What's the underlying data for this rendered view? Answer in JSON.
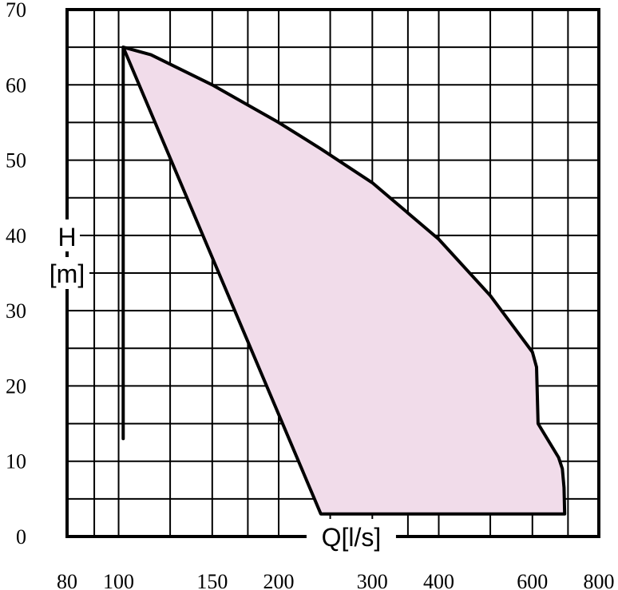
{
  "chart_data": {
    "type": "area",
    "title": "",
    "xlabel": "Q[l/s]",
    "ylabel_line1": "H",
    "ylabel_line2": "[m]",
    "x_scale": "log",
    "xlim": [
      80,
      800
    ],
    "ylim": [
      0,
      70
    ],
    "x_ticks": [
      80,
      100,
      150,
      200,
      300,
      400,
      600,
      800
    ],
    "x_tick_labels": [
      "80",
      "100",
      "150",
      "200",
      "300",
      "400",
      "600",
      "800"
    ],
    "x_minor_grid": [
      90,
      125,
      175,
      250,
      350,
      500,
      700
    ],
    "y_ticks": [
      0,
      10,
      20,
      30,
      40,
      50,
      60,
      70
    ],
    "y_tick_labels": [
      "0",
      "10",
      "20",
      "30",
      "40",
      "50",
      "60",
      "70"
    ],
    "y_minor_grid": [
      5,
      15,
      25,
      35,
      45,
      55,
      65
    ],
    "grid": true,
    "fill_color": "#f1dcea",
    "line_color": "#000000",
    "series": [
      {
        "x": [
          102,
          102,
          240,
          690,
          688,
          683,
          672,
          615,
          611,
          600,
          500,
          400,
          300,
          240,
          200,
          150,
          115,
          102
        ],
        "y": [
          13,
          65,
          3,
          3,
          6.5,
          9,
          10.5,
          15,
          22.5,
          24.5,
          32,
          39.5,
          47,
          51.5,
          55,
          60,
          64,
          65
        ]
      }
    ]
  }
}
